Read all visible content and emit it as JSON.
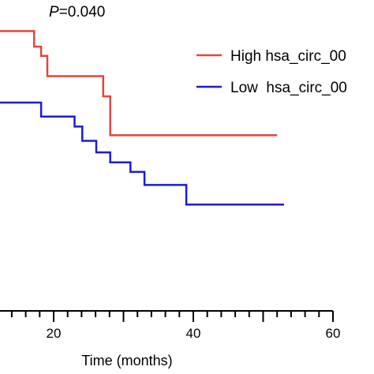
{
  "chart_data": {
    "type": "line",
    "annotation": {
      "prefix": "P",
      "value": "=0.040"
    },
    "xlabel": "Time (months)",
    "x_ticks": [
      20,
      40,
      60
    ],
    "xlim": [
      -6.6,
      60
    ],
    "ylim": [
      0,
      1
    ],
    "series": [
      {
        "name": "High hsa_circ_00",
        "color": "#e8433a",
        "steps": [
          [
            -6.6,
            0.9
          ],
          [
            17.2,
            0.9
          ],
          [
            17.2,
            0.85
          ],
          [
            18.2,
            0.85
          ],
          [
            18.2,
            0.82
          ],
          [
            19.1,
            0.82
          ],
          [
            19.1,
            0.755
          ],
          [
            27.1,
            0.755
          ],
          [
            27.1,
            0.69
          ],
          [
            28.1,
            0.69
          ],
          [
            28.1,
            0.565
          ],
          [
            52,
            0.565
          ]
        ]
      },
      {
        "name": "Low  hsa_circ_00",
        "color": "#1a1adc",
        "steps": [
          [
            -6.6,
            0.825
          ],
          [
            0.6,
            0.825
          ],
          [
            0.6,
            0.78
          ],
          [
            2.6,
            0.78
          ],
          [
            2.6,
            0.745
          ],
          [
            5.5,
            0.745
          ],
          [
            5.5,
            0.705
          ],
          [
            11.0,
            0.705
          ],
          [
            11.0,
            0.67
          ],
          [
            18.2,
            0.67
          ],
          [
            18.2,
            0.625
          ],
          [
            23.0,
            0.625
          ],
          [
            23.0,
            0.593
          ],
          [
            24.1,
            0.593
          ],
          [
            24.1,
            0.547
          ],
          [
            26.1,
            0.547
          ],
          [
            26.1,
            0.51
          ],
          [
            28.1,
            0.51
          ],
          [
            28.1,
            0.478
          ],
          [
            31.0,
            0.478
          ],
          [
            31.0,
            0.447
          ],
          [
            33.0,
            0.447
          ],
          [
            33.0,
            0.405
          ],
          [
            39.0,
            0.405
          ],
          [
            39.0,
            0.342
          ],
          [
            53,
            0.342
          ]
        ]
      }
    ]
  }
}
